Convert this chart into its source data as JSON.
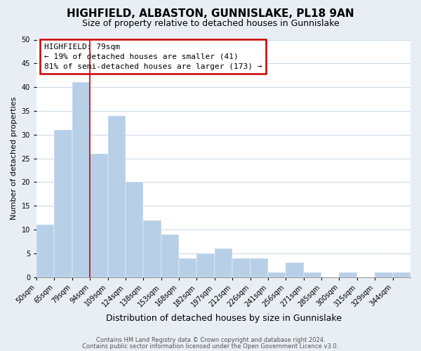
{
  "title": "HIGHFIELD, ALBASTON, GUNNISLAKE, PL18 9AN",
  "subtitle": "Size of property relative to detached houses in Gunnislake",
  "xlabel": "Distribution of detached houses by size in Gunnislake",
  "ylabel": "Number of detached properties",
  "footer_line1": "Contains HM Land Registry data © Crown copyright and database right 2024.",
  "footer_line2": "Contains public sector information licensed under the Open Government Licence v3.0.",
  "bin_labels": [
    "50sqm",
    "65sqm",
    "79sqm",
    "94sqm",
    "109sqm",
    "124sqm",
    "138sqm",
    "153sqm",
    "168sqm",
    "182sqm",
    "197sqm",
    "212sqm",
    "226sqm",
    "241sqm",
    "256sqm",
    "271sqm",
    "285sqm",
    "300sqm",
    "315sqm",
    "329sqm",
    "344sqm"
  ],
  "values": [
    11,
    31,
    41,
    26,
    34,
    20,
    12,
    9,
    4,
    5,
    6,
    4,
    4,
    1,
    3,
    1,
    0,
    1,
    0,
    1,
    1
  ],
  "bar_color": "#b8cfe8",
  "highlight_bar_index": 2,
  "highlight_line_color": "#cc0000",
  "annotation_box_color": "#cc0000",
  "annotation_title": "HIGHFIELD: 79sqm",
  "annotation_line1": "← 19% of detached houses are smaller (41)",
  "annotation_line2": "81% of semi-detached houses are larger (173) →",
  "ylim": [
    0,
    50
  ],
  "yticks": [
    0,
    5,
    10,
    15,
    20,
    25,
    30,
    35,
    40,
    45,
    50
  ],
  "fig_background_color": "#e8eef4",
  "plot_background_color": "#ffffff",
  "grid_color": "#c8d8e8",
  "title_fontsize": 11,
  "subtitle_fontsize": 9,
  "ylabel_fontsize": 8,
  "xlabel_fontsize": 9,
  "tick_fontsize": 7,
  "footer_fontsize": 6
}
